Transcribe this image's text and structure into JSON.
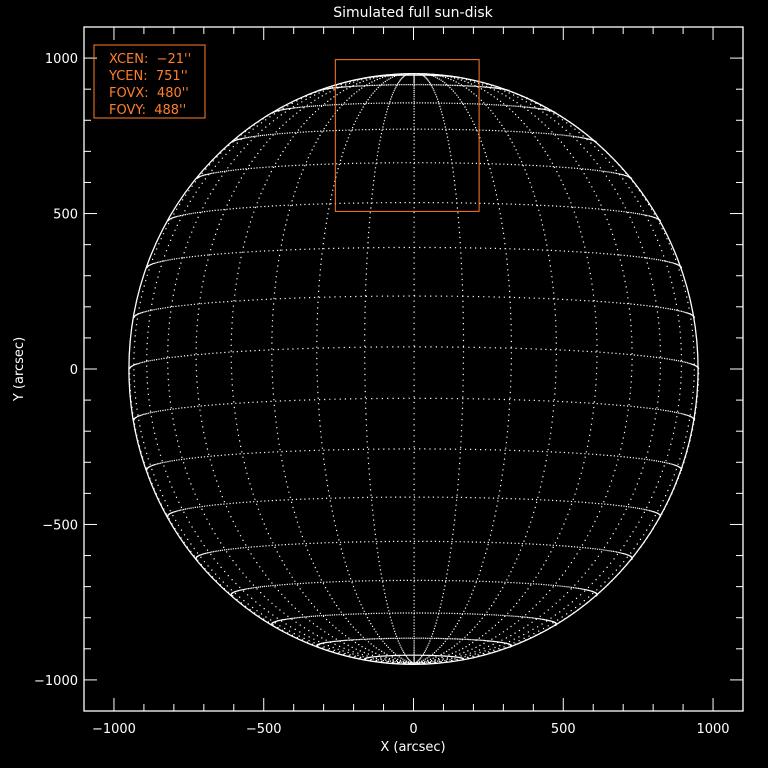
{
  "chart_data": {
    "type": "scatter",
    "title": "Simulated full sun-disk",
    "xlabel": "X (arcsec)",
    "ylabel": "Y (arcsec)",
    "xlim": [
      -1100,
      1100
    ],
    "ylim": [
      -1100,
      1100
    ],
    "x_ticks": [
      -1000,
      -500,
      0,
      500,
      1000
    ],
    "y_ticks": [
      -1000,
      -500,
      0,
      500,
      1000
    ],
    "x_tick_labels": [
      "−1000",
      "−500",
      "0",
      "500",
      "1000"
    ],
    "y_tick_labels": [
      "−1000",
      "−500",
      "0",
      "500",
      "1000"
    ],
    "minor_tick_step": 100,
    "solar_radius_arcsec": 950,
    "grid_spacing_deg": 10,
    "grid": "dotted heliographic lat/lon grid",
    "fov_box": {
      "xcen": -21,
      "ycen": 751,
      "fovx": 480,
      "fovy": 488,
      "color": "#ff7f2a"
    },
    "legend": {
      "placement": "top-left",
      "lines": [
        "XCEN:  −21''",
        "YCEN:  751''",
        "FOVX:  480''",
        "FOVY:  488''"
      ],
      "color": "#ff7f2a"
    },
    "colors": {
      "background": "#000000",
      "foreground": "#ffffff"
    }
  }
}
